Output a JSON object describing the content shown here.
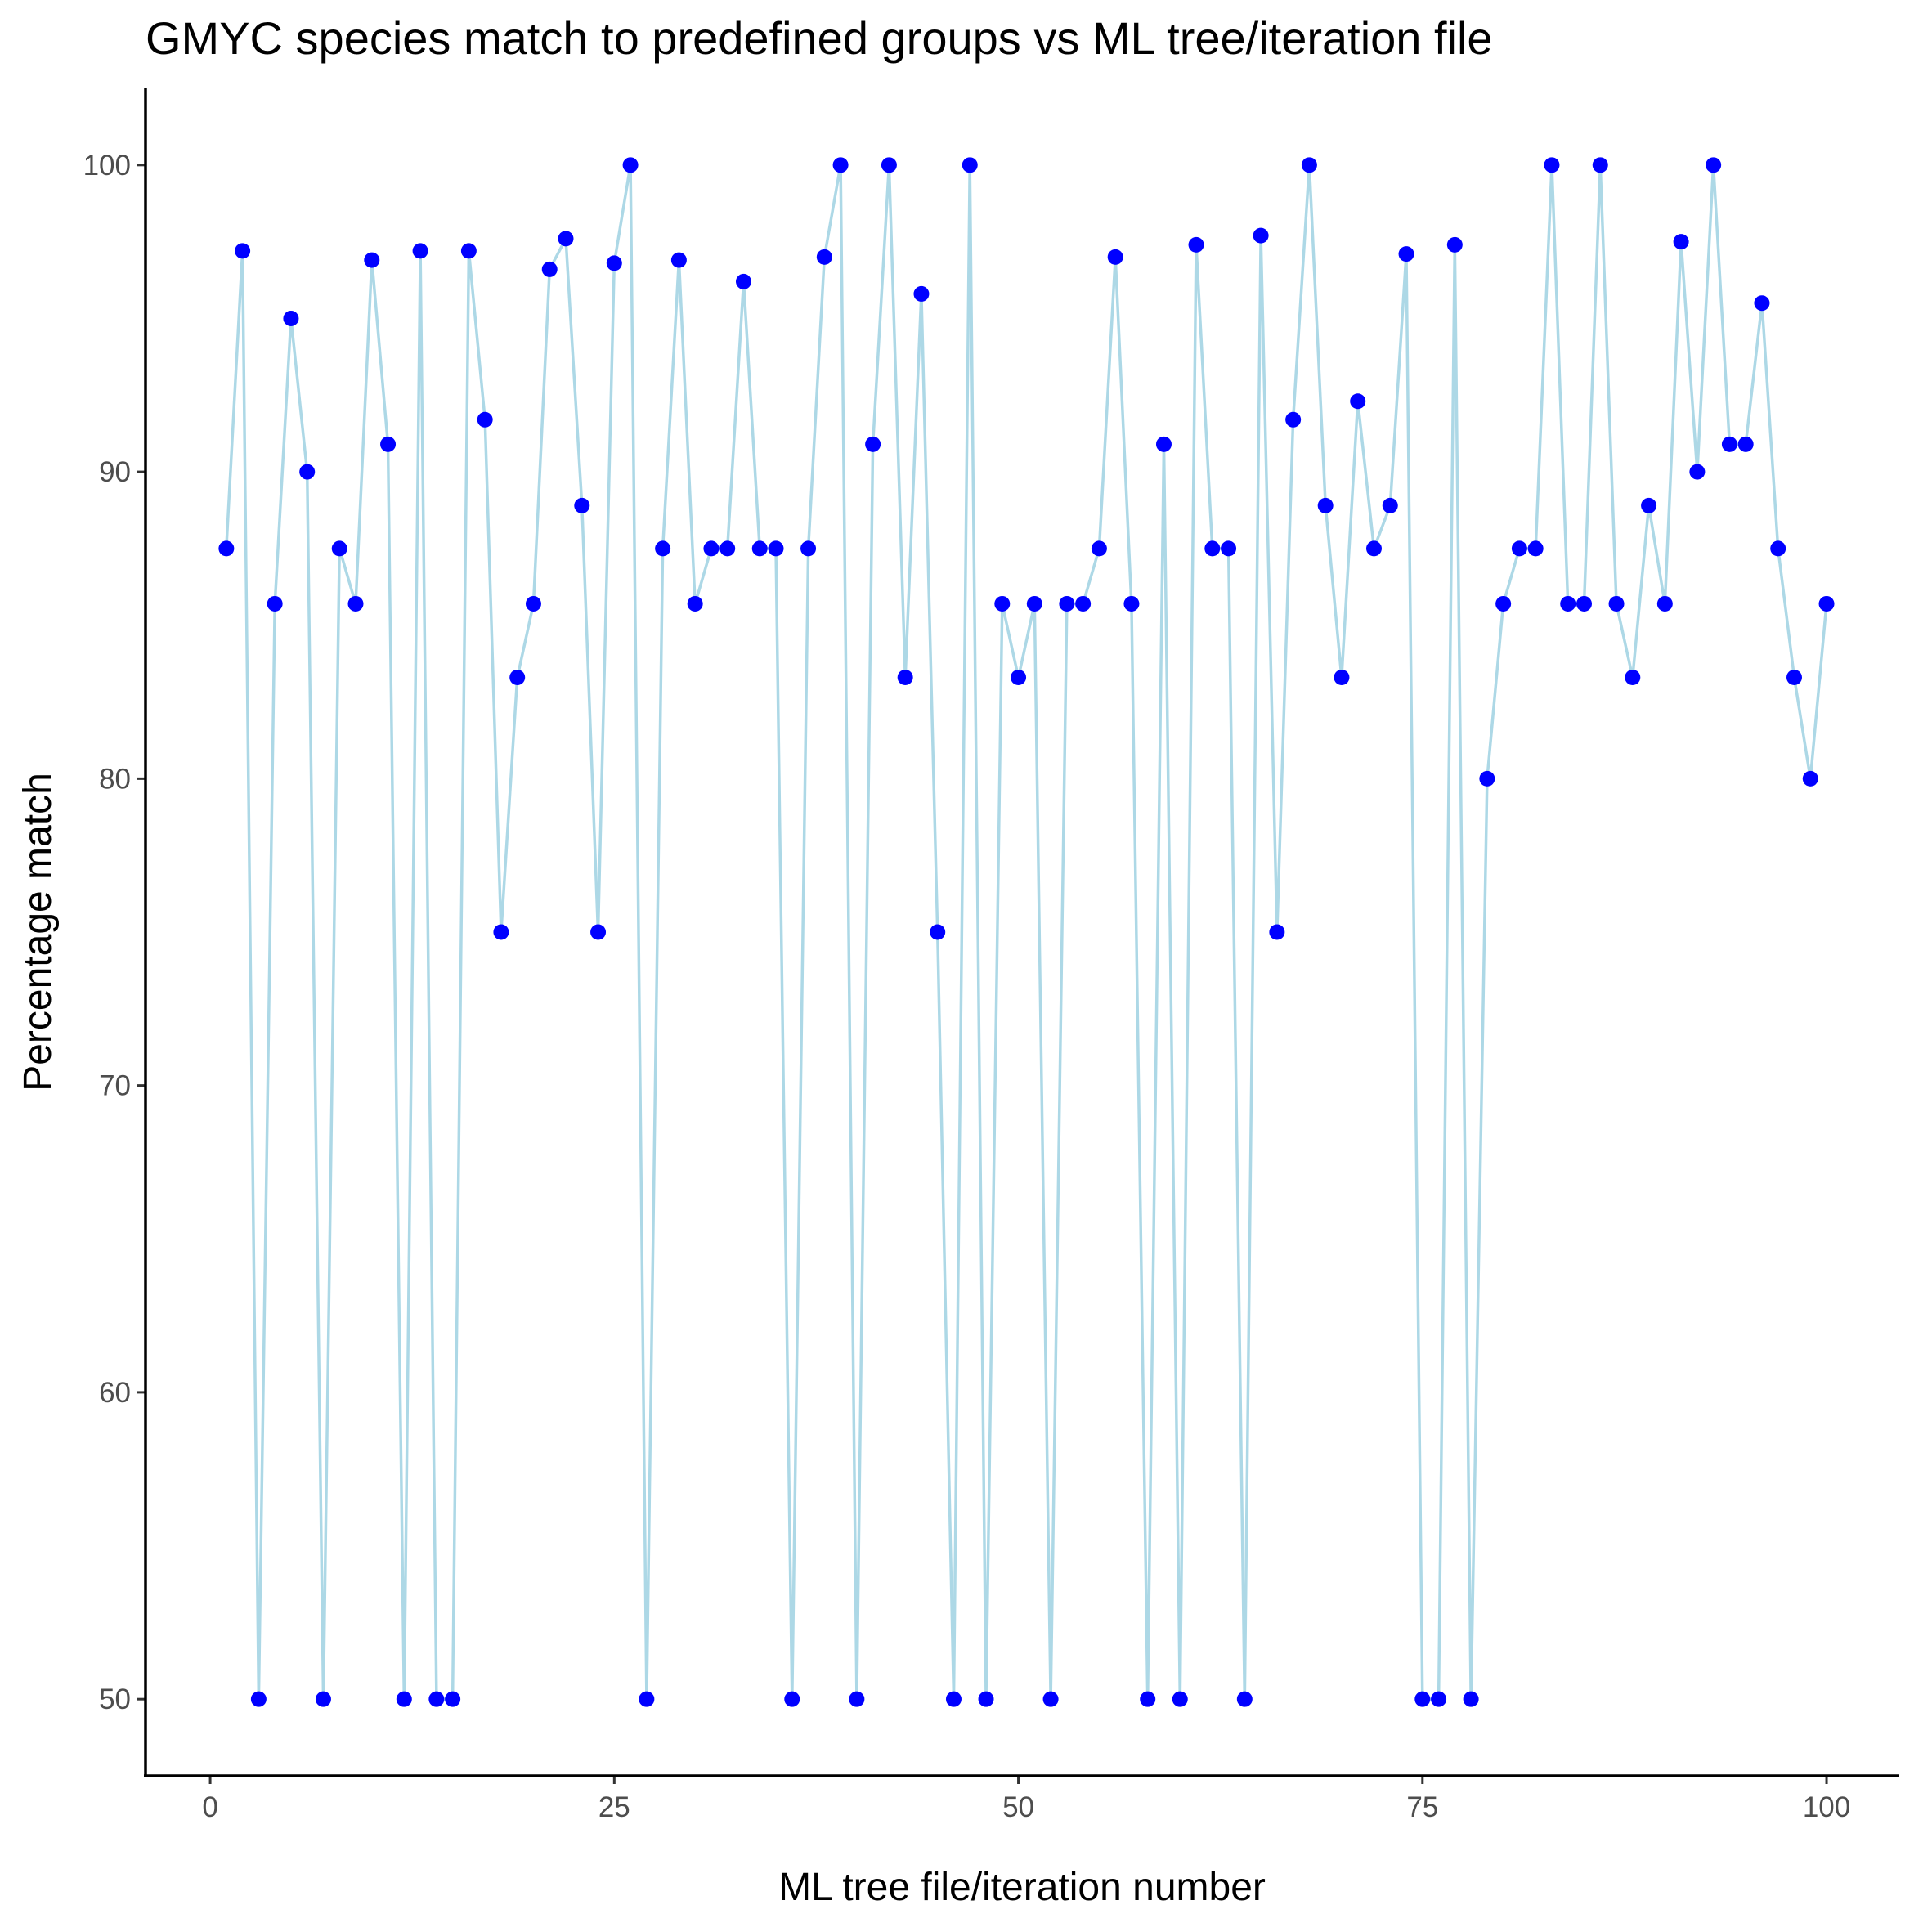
{
  "chart_data": {
    "type": "line",
    "title": "GMYC species match to predefined groups vs ML tree/iteration file",
    "xlabel": "ML tree file/iteration number",
    "ylabel": "Percentage match",
    "xlim": [
      -4,
      104.5
    ],
    "ylim": [
      47.5,
      102.5
    ],
    "x_ticks": [
      0,
      25,
      50,
      75,
      100
    ],
    "y_ticks": [
      50,
      60,
      70,
      80,
      90,
      100
    ],
    "grid": false,
    "legend": "none",
    "line_color": "#add8e6",
    "point_color": "#0000ff",
    "x": [
      1,
      2,
      3,
      4,
      5,
      6,
      7,
      8,
      9,
      10,
      11,
      12,
      13,
      14,
      15,
      16,
      17,
      18,
      19,
      20,
      21,
      22,
      23,
      24,
      25,
      26,
      27,
      28,
      29,
      30,
      31,
      32,
      33,
      34,
      35,
      36,
      37,
      38,
      39,
      40,
      41,
      42,
      43,
      44,
      45,
      46,
      47,
      48,
      49,
      50,
      51,
      52,
      53,
      54,
      55,
      56,
      57,
      58,
      59,
      60,
      61,
      62,
      63,
      64,
      65,
      66,
      67,
      68,
      69,
      70,
      71,
      72,
      73,
      74,
      75,
      76,
      77,
      78,
      79,
      80,
      81,
      82,
      83,
      84,
      85,
      86,
      87,
      88,
      89,
      90,
      91,
      92,
      93,
      94,
      95,
      96,
      97,
      98,
      99,
      100
    ],
    "y": [
      87.5,
      97.2,
      50,
      85.7,
      95,
      90,
      50,
      87.5,
      85.7,
      96.9,
      90.9,
      50,
      97.2,
      50,
      50,
      97.2,
      91.7,
      75,
      83.3,
      85.7,
      96.6,
      97.6,
      88.9,
      75,
      96.8,
      100,
      50,
      87.5,
      96.9,
      85.7,
      87.5,
      87.5,
      96.2,
      87.5,
      87.5,
      50,
      87.5,
      97,
      100,
      50,
      90.9,
      100,
      83.3,
      95.8,
      75,
      50,
      100,
      50,
      85.7,
      83.3,
      85.7,
      50,
      85.7,
      85.7,
      87.5,
      97,
      85.7,
      50,
      90.9,
      50,
      97.4,
      87.5,
      87.5,
      50,
      97.7,
      75,
      91.7,
      100,
      88.9,
      83.3,
      92.3,
      87.5,
      88.9,
      97.1,
      50,
      50,
      97.4,
      50,
      80,
      85.7,
      87.5,
      87.5,
      100,
      85.7,
      85.7,
      100,
      85.7,
      83.3,
      88.9,
      85.7,
      97.5,
      90,
      100,
      90.9,
      90.9,
      95.5,
      87.5,
      83.3,
      80,
      85.7
    ]
  }
}
